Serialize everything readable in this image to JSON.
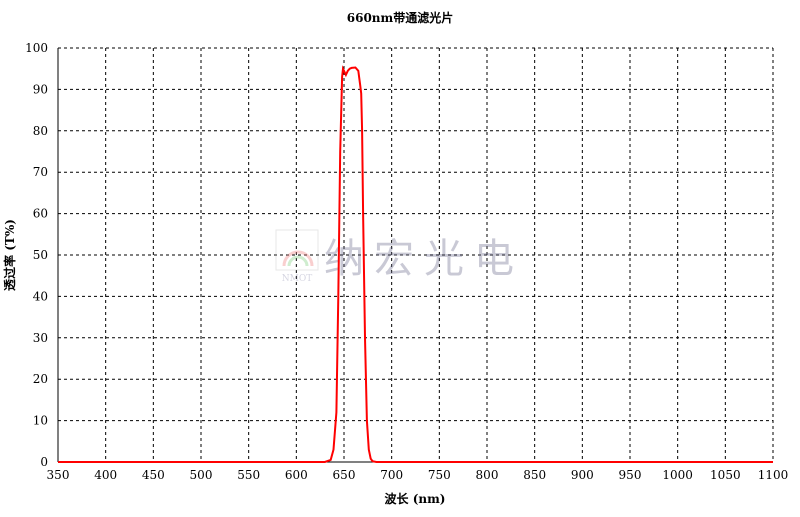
{
  "chart_data": {
    "type": "line",
    "title": "660nm带通滤光片",
    "xlabel": "波长 (nm)",
    "ylabel": "透过率 (T%)",
    "xlim": [
      350,
      1100
    ],
    "ylim": [
      0,
      100
    ],
    "xticks": [
      350,
      400,
      450,
      500,
      550,
      600,
      650,
      700,
      750,
      800,
      850,
      900,
      950,
      1000,
      1050,
      1100
    ],
    "yticks": [
      0,
      10,
      20,
      30,
      40,
      50,
      60,
      70,
      80,
      90,
      100
    ],
    "grid": true,
    "series": [
      {
        "color": "#ff0000",
        "x": [
          350,
          630,
          636,
          639,
          642,
          644,
          646,
          648,
          649,
          650,
          652,
          654,
          656,
          658,
          662,
          665,
          667,
          668,
          669,
          670,
          672,
          674,
          676,
          678,
          680,
          684,
          700,
          1100
        ],
        "y": [
          0,
          0,
          0.5,
          3,
          12,
          40,
          75,
          93,
          95,
          94.5,
          93.5,
          94.5,
          95,
          95.2,
          95.3,
          94.5,
          91,
          89,
          80,
          60,
          30,
          10,
          3,
          0.8,
          0.2,
          0,
          0,
          0
        ]
      }
    ]
  },
  "watermark": {
    "logo_text": "NMOT",
    "text": "纳宏光电"
  }
}
